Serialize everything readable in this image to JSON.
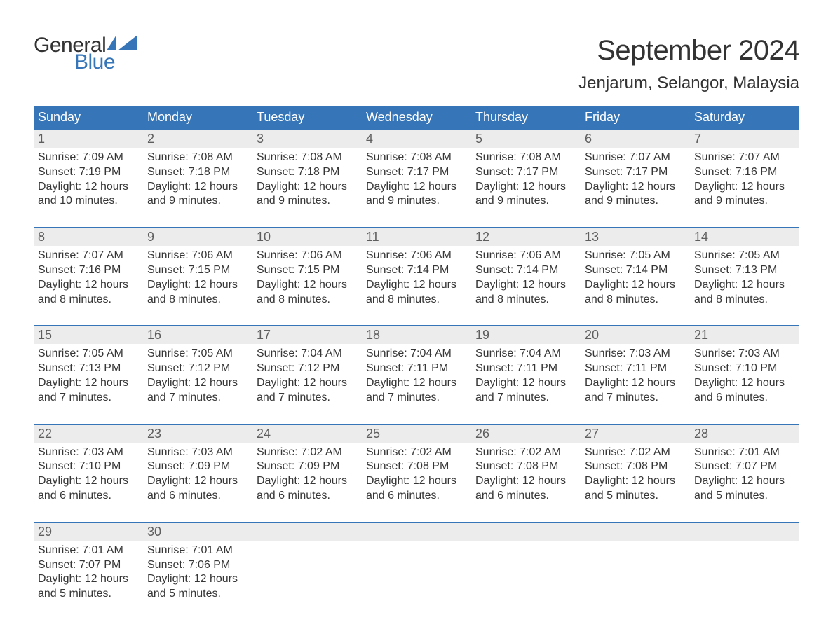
{
  "brand": {
    "general": "General",
    "blue": "Blue",
    "flag_color": "#3575b8"
  },
  "title": "September 2024",
  "location": "Jenjarum, Selangor, Malaysia",
  "colors": {
    "header_bg": "#3575b8",
    "header_text": "#ffffff",
    "daynum_bg": "#ececec",
    "daynum_text": "#5e5e5e",
    "body_text": "#363636",
    "week_border": "#3575b8",
    "page_bg": "#ffffff"
  },
  "typography": {
    "title_fontsize": 40,
    "location_fontsize": 24,
    "dayheader_fontsize": 18,
    "daynum_fontsize": 18,
    "body_fontsize": 16,
    "logo_fontsize": 30
  },
  "day_names": [
    "Sunday",
    "Monday",
    "Tuesday",
    "Wednesday",
    "Thursday",
    "Friday",
    "Saturday"
  ],
  "weeks": [
    [
      {
        "n": "1",
        "sunrise": "Sunrise: 7:09 AM",
        "sunset": "Sunset: 7:19 PM",
        "daylight": "Daylight: 12 hours and 10 minutes."
      },
      {
        "n": "2",
        "sunrise": "Sunrise: 7:08 AM",
        "sunset": "Sunset: 7:18 PM",
        "daylight": "Daylight: 12 hours and 9 minutes."
      },
      {
        "n": "3",
        "sunrise": "Sunrise: 7:08 AM",
        "sunset": "Sunset: 7:18 PM",
        "daylight": "Daylight: 12 hours and 9 minutes."
      },
      {
        "n": "4",
        "sunrise": "Sunrise: 7:08 AM",
        "sunset": "Sunset: 7:17 PM",
        "daylight": "Daylight: 12 hours and 9 minutes."
      },
      {
        "n": "5",
        "sunrise": "Sunrise: 7:08 AM",
        "sunset": "Sunset: 7:17 PM",
        "daylight": "Daylight: 12 hours and 9 minutes."
      },
      {
        "n": "6",
        "sunrise": "Sunrise: 7:07 AM",
        "sunset": "Sunset: 7:17 PM",
        "daylight": "Daylight: 12 hours and 9 minutes."
      },
      {
        "n": "7",
        "sunrise": "Sunrise: 7:07 AM",
        "sunset": "Sunset: 7:16 PM",
        "daylight": "Daylight: 12 hours and 9 minutes."
      }
    ],
    [
      {
        "n": "8",
        "sunrise": "Sunrise: 7:07 AM",
        "sunset": "Sunset: 7:16 PM",
        "daylight": "Daylight: 12 hours and 8 minutes."
      },
      {
        "n": "9",
        "sunrise": "Sunrise: 7:06 AM",
        "sunset": "Sunset: 7:15 PM",
        "daylight": "Daylight: 12 hours and 8 minutes."
      },
      {
        "n": "10",
        "sunrise": "Sunrise: 7:06 AM",
        "sunset": "Sunset: 7:15 PM",
        "daylight": "Daylight: 12 hours and 8 minutes."
      },
      {
        "n": "11",
        "sunrise": "Sunrise: 7:06 AM",
        "sunset": "Sunset: 7:14 PM",
        "daylight": "Daylight: 12 hours and 8 minutes."
      },
      {
        "n": "12",
        "sunrise": "Sunrise: 7:06 AM",
        "sunset": "Sunset: 7:14 PM",
        "daylight": "Daylight: 12 hours and 8 minutes."
      },
      {
        "n": "13",
        "sunrise": "Sunrise: 7:05 AM",
        "sunset": "Sunset: 7:14 PM",
        "daylight": "Daylight: 12 hours and 8 minutes."
      },
      {
        "n": "14",
        "sunrise": "Sunrise: 7:05 AM",
        "sunset": "Sunset: 7:13 PM",
        "daylight": "Daylight: 12 hours and 8 minutes."
      }
    ],
    [
      {
        "n": "15",
        "sunrise": "Sunrise: 7:05 AM",
        "sunset": "Sunset: 7:13 PM",
        "daylight": "Daylight: 12 hours and 7 minutes."
      },
      {
        "n": "16",
        "sunrise": "Sunrise: 7:05 AM",
        "sunset": "Sunset: 7:12 PM",
        "daylight": "Daylight: 12 hours and 7 minutes."
      },
      {
        "n": "17",
        "sunrise": "Sunrise: 7:04 AM",
        "sunset": "Sunset: 7:12 PM",
        "daylight": "Daylight: 12 hours and 7 minutes."
      },
      {
        "n": "18",
        "sunrise": "Sunrise: 7:04 AM",
        "sunset": "Sunset: 7:11 PM",
        "daylight": "Daylight: 12 hours and 7 minutes."
      },
      {
        "n": "19",
        "sunrise": "Sunrise: 7:04 AM",
        "sunset": "Sunset: 7:11 PM",
        "daylight": "Daylight: 12 hours and 7 minutes."
      },
      {
        "n": "20",
        "sunrise": "Sunrise: 7:03 AM",
        "sunset": "Sunset: 7:11 PM",
        "daylight": "Daylight: 12 hours and 7 minutes."
      },
      {
        "n": "21",
        "sunrise": "Sunrise: 7:03 AM",
        "sunset": "Sunset: 7:10 PM",
        "daylight": "Daylight: 12 hours and 6 minutes."
      }
    ],
    [
      {
        "n": "22",
        "sunrise": "Sunrise: 7:03 AM",
        "sunset": "Sunset: 7:10 PM",
        "daylight": "Daylight: 12 hours and 6 minutes."
      },
      {
        "n": "23",
        "sunrise": "Sunrise: 7:03 AM",
        "sunset": "Sunset: 7:09 PM",
        "daylight": "Daylight: 12 hours and 6 minutes."
      },
      {
        "n": "24",
        "sunrise": "Sunrise: 7:02 AM",
        "sunset": "Sunset: 7:09 PM",
        "daylight": "Daylight: 12 hours and 6 minutes."
      },
      {
        "n": "25",
        "sunrise": "Sunrise: 7:02 AM",
        "sunset": "Sunset: 7:08 PM",
        "daylight": "Daylight: 12 hours and 6 minutes."
      },
      {
        "n": "26",
        "sunrise": "Sunrise: 7:02 AM",
        "sunset": "Sunset: 7:08 PM",
        "daylight": "Daylight: 12 hours and 6 minutes."
      },
      {
        "n": "27",
        "sunrise": "Sunrise: 7:02 AM",
        "sunset": "Sunset: 7:08 PM",
        "daylight": "Daylight: 12 hours and 5 minutes."
      },
      {
        "n": "28",
        "sunrise": "Sunrise: 7:01 AM",
        "sunset": "Sunset: 7:07 PM",
        "daylight": "Daylight: 12 hours and 5 minutes."
      }
    ],
    [
      {
        "n": "29",
        "sunrise": "Sunrise: 7:01 AM",
        "sunset": "Sunset: 7:07 PM",
        "daylight": "Daylight: 12 hours and 5 minutes."
      },
      {
        "n": "30",
        "sunrise": "Sunrise: 7:01 AM",
        "sunset": "Sunset: 7:06 PM",
        "daylight": "Daylight: 12 hours and 5 minutes."
      },
      {
        "empty": true
      },
      {
        "empty": true
      },
      {
        "empty": true
      },
      {
        "empty": true
      },
      {
        "empty": true
      }
    ]
  ]
}
